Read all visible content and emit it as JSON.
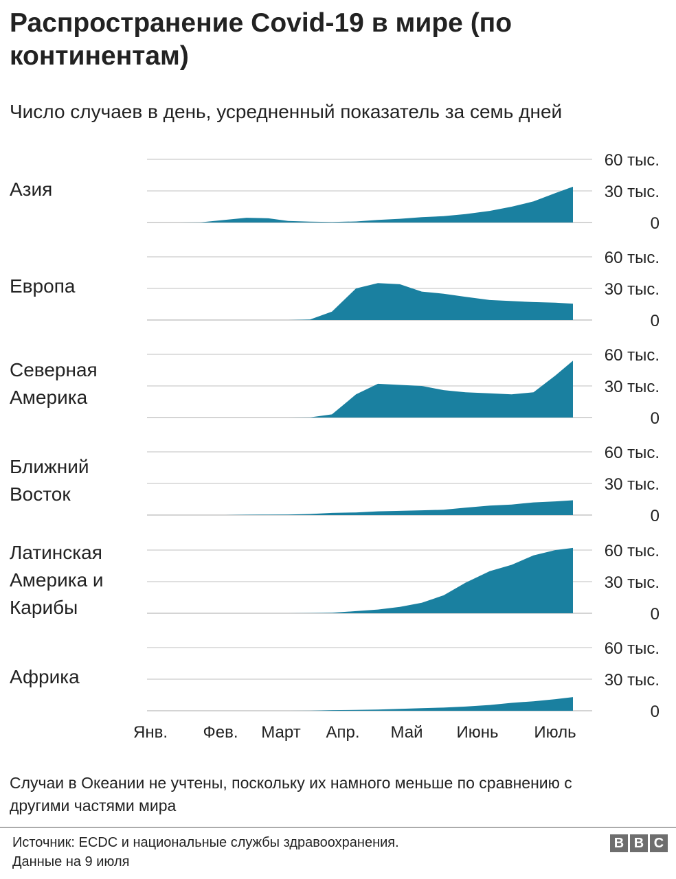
{
  "title": "Распространение Covid-19 в мире (по континентам)",
  "subtitle": "Число случаев в день, усредненный показатель за семь дней",
  "note": "Случаи в Океании не учтены, поскольку их намного меньше по сравнению с другими частями мира",
  "source": {
    "line1": "Источник: ECDC и национальные службы здравоохранения.",
    "line2": "Данные на 9 июля"
  },
  "logo": [
    "B",
    "B",
    "C"
  ],
  "colors": {
    "area": "#1a80a0",
    "grid": "#cccccc",
    "text": "#222222"
  },
  "chart_data": {
    "type": "area",
    "layout": "small-multiples",
    "y_tick_labels": [
      "0",
      "30 тыс.",
      "60 тыс."
    ],
    "y_ticks": [
      0,
      30000,
      60000
    ],
    "ylim": [
      0,
      60000
    ],
    "x_tick_labels": [
      "Янв.",
      "Фев.",
      "Март",
      "Апр.",
      "Май",
      "Июнь",
      "Июль"
    ],
    "x_ticks": [
      "2020-01-01",
      "2020-02-01",
      "2020-03-01",
      "2020-04-01",
      "2020-05-01",
      "2020-06-01",
      "2020-07-01"
    ],
    "x": [
      "2020-01-01",
      "2020-01-11",
      "2020-01-21",
      "2020-02-01",
      "2020-02-11",
      "2020-02-21",
      "2020-03-01",
      "2020-03-11",
      "2020-03-21",
      "2020-04-01",
      "2020-04-11",
      "2020-04-21",
      "2020-05-01",
      "2020-05-11",
      "2020-05-21",
      "2020-06-01",
      "2020-06-11",
      "2020-06-21",
      "2020-07-01",
      "2020-07-09"
    ],
    "series": [
      {
        "name": "Азия",
        "values": [
          0,
          0,
          200,
          2500,
          4500,
          4000,
          1500,
          800,
          500,
          1000,
          2500,
          3500,
          5000,
          6000,
          8000,
          11000,
          15000,
          20000,
          28000,
          34000
        ]
      },
      {
        "name": "Европа",
        "values": [
          0,
          0,
          0,
          0,
          0,
          0,
          0,
          500,
          8000,
          30000,
          35000,
          34000,
          27000,
          25000,
          22000,
          19000,
          18000,
          17000,
          16500,
          15500
        ]
      },
      {
        "name": "Северная Америка",
        "values": [
          0,
          0,
          0,
          0,
          0,
          0,
          0,
          100,
          3000,
          22000,
          32000,
          31000,
          30000,
          26000,
          24000,
          23000,
          22000,
          24000,
          40000,
          54000
        ]
      },
      {
        "name": "Ближний Восток",
        "values": [
          0,
          0,
          0,
          0,
          300,
          400,
          500,
          1000,
          2000,
          2500,
          3500,
          4000,
          4500,
          5000,
          7000,
          9000,
          10000,
          12000,
          13000,
          14000
        ]
      },
      {
        "name": "Латинская Америка и Карибы",
        "values": [
          0,
          0,
          0,
          0,
          0,
          0,
          0,
          200,
          500,
          2000,
          3500,
          6000,
          10000,
          17000,
          29000,
          40000,
          46000,
          55000,
          60000,
          62000
        ]
      },
      {
        "name": "Африка",
        "values": [
          0,
          0,
          0,
          0,
          0,
          0,
          0,
          50,
          600,
          800,
          1200,
          1800,
          2500,
          3000,
          4000,
          5500,
          7500,
          9000,
          11000,
          13000
        ]
      }
    ]
  }
}
